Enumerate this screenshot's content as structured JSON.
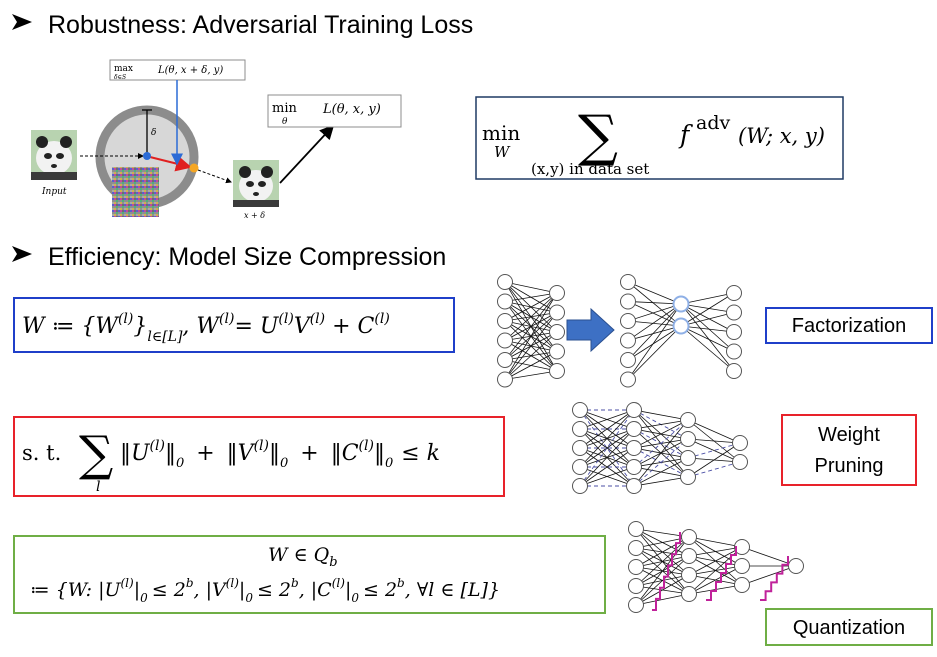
{
  "sections": {
    "robustness": {
      "heading": "Robustness: Adversarial Training Loss"
    },
    "efficiency": {
      "heading": "Efficiency: Model Size Compression"
    }
  },
  "adversarial_figure": {
    "max_label": "max",
    "max_subscript": "δ∈S",
    "inner_loss": "L(θ, x + δ, y)",
    "min_label": "min",
    "min_subscript": "θ",
    "outer_loss": "L(θ, x, y)",
    "delta_symbol": "δ",
    "input_caption": "Input",
    "output_caption": "x + δ"
  },
  "adv_objective": {
    "min_word": "min",
    "min_var": "W",
    "sum_sub": "(x,y) in data set",
    "f_symbol": "f",
    "f_sup": "adv",
    "f_args": "(W; x, y)"
  },
  "constraints": {
    "factorization": {
      "lhs": "W ≔ {W",
      "sup_l": "(l)",
      "set_close": "}",
      "set_sub": "l∈[L]",
      "mid": ", W",
      "eq": "= U",
      "v": "V",
      "plus": " + C"
    },
    "pruning": {
      "st": "s. t.",
      "sum_var": "l",
      "norm_sub": "0",
      "u_term": "U",
      "v_term": "V",
      "c_term": "C",
      "sup_l": "(l)",
      "plus": "+",
      "leq_k": "≤ k"
    },
    "quantization": {
      "line1": "W ∈ Q",
      "line1_sub": "b",
      "line2_start": "≔ {W: |U",
      "sup_l": "(l)",
      "norm_sub": "0",
      "pow": "≤ 2",
      "pow_sup": "b",
      "v_part": ", |V",
      "c_part": ", |C",
      "end": ", ∀l ∈ [L]}"
    }
  },
  "labels": {
    "factorization": "Factorization",
    "pruning_line1": "Weight",
    "pruning_line2": "Pruning",
    "quantization": "Quantization"
  },
  "colors": {
    "blue_box": "#1f3fc9",
    "red_box": "#e8222a",
    "green_box": "#6fae45",
    "dark_box": "#1f3a64",
    "arrow_fill": "#3d70c4",
    "pruned_edge": "#4b4fa6",
    "quant_mark": "#c0229a",
    "perturb_arrow": "#e02020",
    "grad_arrow": "#2b6bd6",
    "node_orange": "#f5a623",
    "node_blue": "#2b6bd6"
  }
}
